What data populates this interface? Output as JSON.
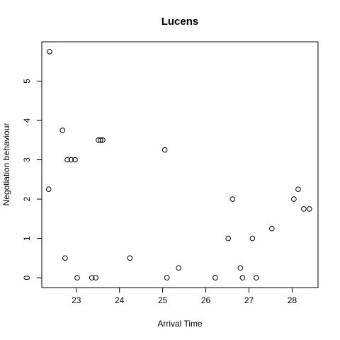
{
  "chart_data": {
    "type": "scatter",
    "title": "Lucens",
    "xlabel": "Arrival Time",
    "ylabel": "Negotiation behaviour",
    "xlim": [
      22.2,
      28.6
    ],
    "ylim": [
      -0.25,
      6.0
    ],
    "xticks": [
      23,
      24,
      25,
      26,
      27,
      28
    ],
    "yticks": [
      0,
      1,
      2,
      3,
      4,
      5
    ],
    "grid": false,
    "points": [
      {
        "x": 22.36,
        "y": 2.25
      },
      {
        "x": 22.38,
        "y": 5.75
      },
      {
        "x": 22.68,
        "y": 3.75
      },
      {
        "x": 22.74,
        "y": 0.5
      },
      {
        "x": 22.79,
        "y": 3.0
      },
      {
        "x": 22.88,
        "y": 3.0
      },
      {
        "x": 22.97,
        "y": 3.0
      },
      {
        "x": 23.02,
        "y": 0.0
      },
      {
        "x": 23.36,
        "y": 0.0
      },
      {
        "x": 23.45,
        "y": 0.0
      },
      {
        "x": 23.51,
        "y": 3.5
      },
      {
        "x": 23.56,
        "y": 3.5
      },
      {
        "x": 23.61,
        "y": 3.5
      },
      {
        "x": 24.24,
        "y": 0.5
      },
      {
        "x": 25.05,
        "y": 3.25
      },
      {
        "x": 25.1,
        "y": 0.0
      },
      {
        "x": 25.37,
        "y": 0.25
      },
      {
        "x": 26.22,
        "y": 0.0
      },
      {
        "x": 26.52,
        "y": 1.0
      },
      {
        "x": 26.62,
        "y": 2.0
      },
      {
        "x": 26.8,
        "y": 0.25
      },
      {
        "x": 26.85,
        "y": 0.0
      },
      {
        "x": 27.08,
        "y": 1.0
      },
      {
        "x": 27.17,
        "y": 0.0
      },
      {
        "x": 27.53,
        "y": 1.25
      },
      {
        "x": 28.04,
        "y": 2.0
      },
      {
        "x": 28.14,
        "y": 2.25
      },
      {
        "x": 28.27,
        "y": 1.75
      },
      {
        "x": 28.4,
        "y": 1.75
      }
    ]
  }
}
